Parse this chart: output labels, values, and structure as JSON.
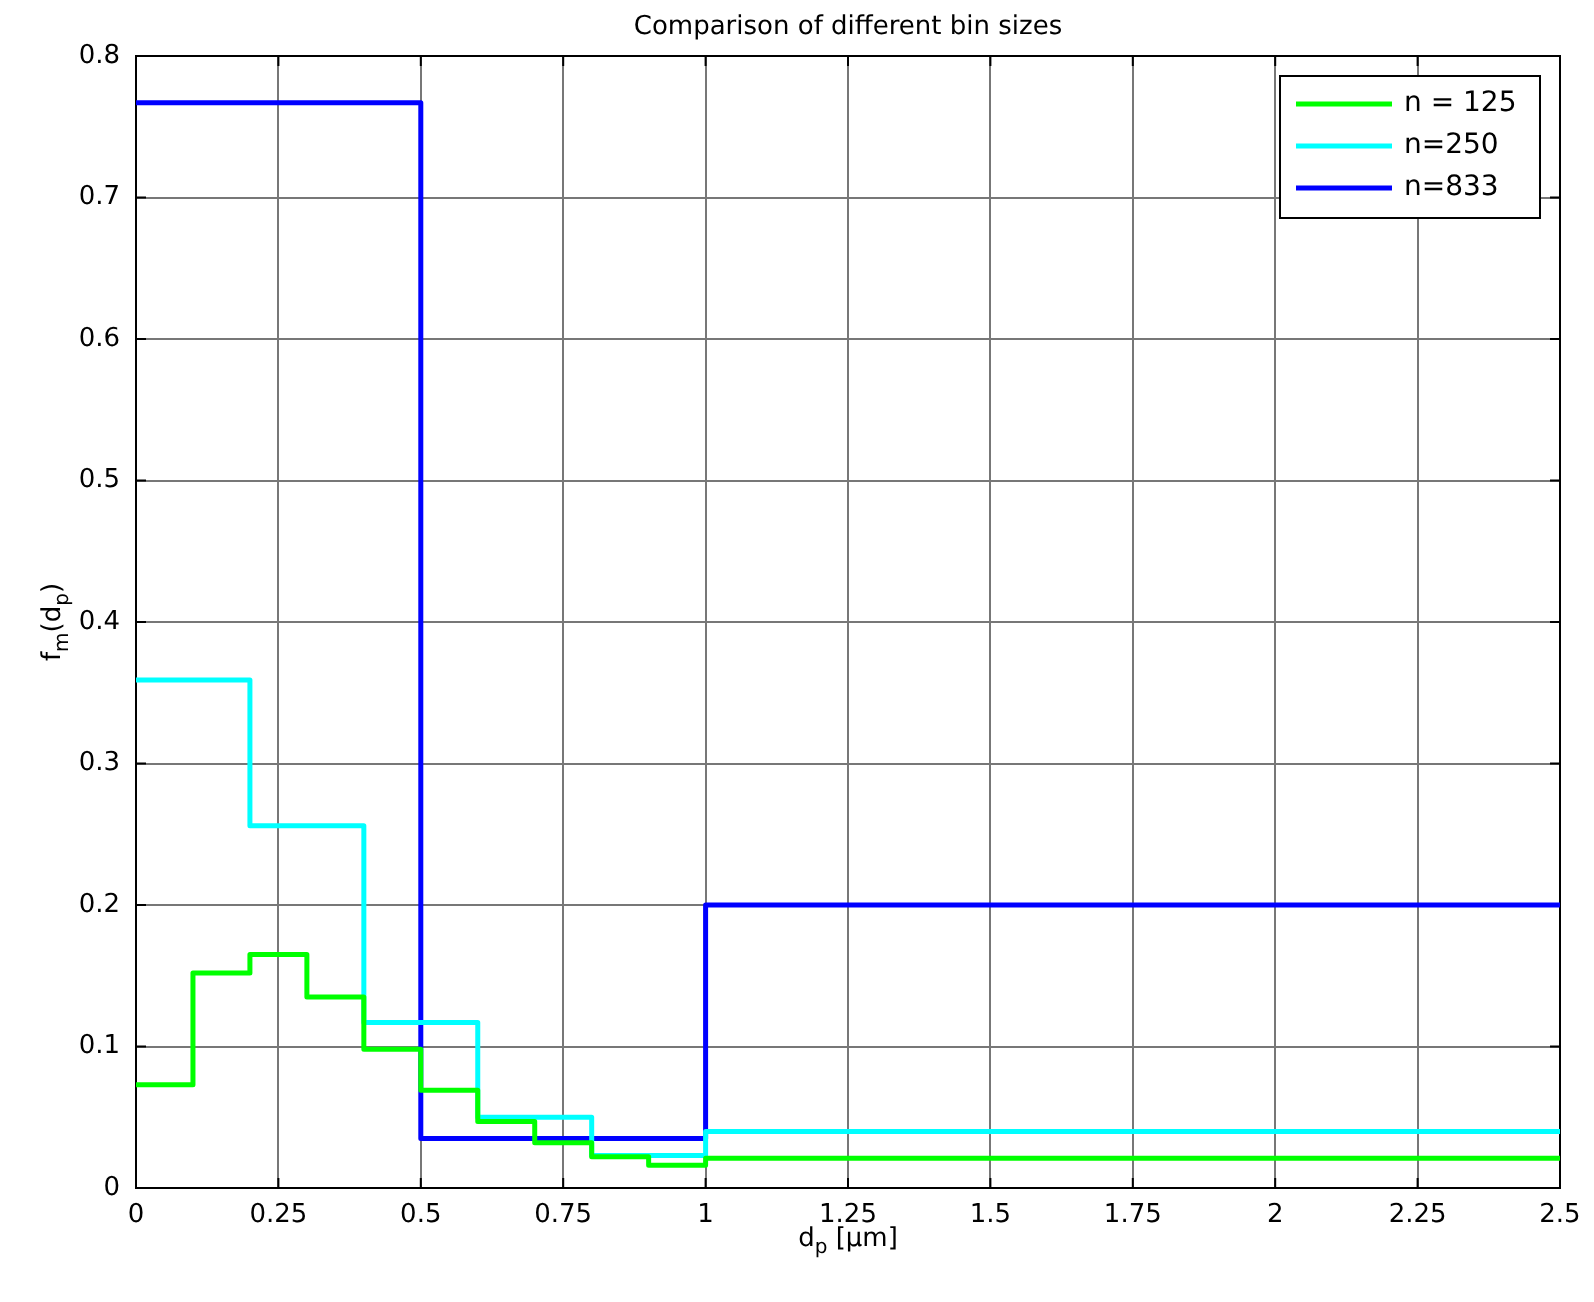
{
  "chart_data": {
    "type": "step",
    "title": "Comparison of different bin sizes",
    "xlabel": "d$_{p}$ [µm]",
    "ylabel": "f$_{m}$(d$_{p}$)",
    "series": [
      {
        "name": "n = 125",
        "color": "#00ff00",
        "x": [
          0,
          0.1,
          0.2,
          0.3,
          0.4,
          0.5,
          0.6,
          0.7,
          0.8,
          0.9,
          1.0,
          2.5
        ],
        "values": [
          0.073,
          0.152,
          0.165,
          0.135,
          0.098,
          0.069,
          0.047,
          0.032,
          0.022,
          0.016,
          0.021,
          0.021
        ]
      },
      {
        "name": "n=250",
        "color": "#00ffff",
        "x": [
          0,
          0.2,
          0.4,
          0.6,
          0.8,
          1.0,
          2.5
        ],
        "values": [
          0.359,
          0.256,
          0.117,
          0.05,
          0.023,
          0.04,
          0.04
        ]
      },
      {
        "name": "n=833",
        "color": "#0000ff",
        "x": [
          0,
          0.5,
          1.0,
          2.5
        ],
        "values": [
          0.767,
          0.035,
          0.2,
          0.2
        ]
      }
    ],
    "xlim": [
      0,
      2.5
    ],
    "xticks": [
      0,
      0.25,
      0.5,
      0.75,
      1,
      1.25,
      1.5,
      1.75,
      2,
      2.25,
      2.5
    ],
    "ylim": [
      0,
      0.8
    ],
    "yticks": [
      0,
      0.1,
      0.2,
      0.3,
      0.4,
      0.5,
      0.6,
      0.7,
      0.8
    ],
    "grid": true,
    "legend": "top right",
    "line_style": "solid",
    "marker": "none"
  }
}
